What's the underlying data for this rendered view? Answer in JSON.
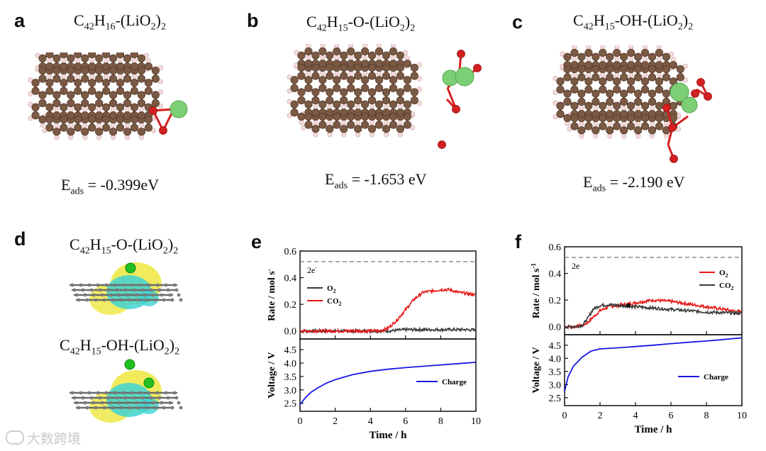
{
  "panels": {
    "a": {
      "label": "a",
      "formula": {
        "pre": "C",
        "s1": "42",
        "mid": "H",
        "s2": "16",
        "post": "-(LiO",
        "s3": "2",
        "end": ")"
      },
      "fsub": "2",
      "energy_sym": "E",
      "energy_sub": "ads",
      "energy_value": " = -0.399eV"
    },
    "b": {
      "label": "b",
      "formula": {
        "pre": "C",
        "s1": "42",
        "mid": "H",
        "s2": "15",
        "post": "-O-(LiO",
        "s3": "2",
        "end": ")"
      },
      "fsub": "2",
      "energy_sym": "E",
      "energy_sub": "ads",
      "energy_value": " = -1.653 eV"
    },
    "c": {
      "label": "c",
      "formula": {
        "pre": "C",
        "s1": "42",
        "mid": "H",
        "s2": "15",
        "post": "-OH-(LiO",
        "s3": "2",
        "end": ")"
      },
      "fsub": "2",
      "energy_sym": "E",
      "energy_sub": "ads",
      "energy_value": " = -2.190 eV"
    },
    "d": {
      "label": "d",
      "top": {
        "pre": "C",
        "s1": "42",
        "mid": "H",
        "s2": "15",
        "post": "-O-(LiO",
        "s3": "2",
        "end": ")",
        "fsub": "2"
      },
      "bottom": {
        "pre": "C",
        "s1": "42",
        "mid": "H",
        "s2": "15",
        "post": "-OH-(LiO",
        "s3": "2",
        "end": ")",
        "fsub": "2"
      }
    },
    "e": {
      "label": "e"
    },
    "f": {
      "label": "f"
    }
  },
  "colors": {
    "carbon": "#7b5a45",
    "hydrogen": "#f3dada",
    "oxygen": "#d42020",
    "lithium": "#7ccf74",
    "o2_line": "#3a3a3a",
    "co2_line": "#e81818",
    "charge_line": "#1818e0",
    "iso_yellow": "#efe94a",
    "iso_cyan": "#3fd4d4"
  },
  "chart_data": [
    {
      "type": "line",
      "panel": "e",
      "ylabel_top": "Rate / mol s",
      "ylabel_top_sup": "-",
      "ylabel_bottom": "Voltage / V",
      "xlabel": "Time / h",
      "xlim": [
        0,
        10
      ],
      "x_ticks": [
        "0",
        "2",
        "4",
        "6",
        "8",
        "10"
      ],
      "rate_ylim": [
        -0.06,
        0.6
      ],
      "rate_ticks": [
        "0.0",
        "0.2",
        "0.4",
        "0.6"
      ],
      "voltage_ylim": [
        2.2,
        4.9
      ],
      "voltage_ticks": [
        "2.5",
        "3.0",
        "3.5",
        "4.0",
        "4.5"
      ],
      "reference_line": {
        "value": 0.52,
        "label": "2e",
        "label_sup": "-"
      },
      "legend": [
        {
          "name": "O",
          "sub": "2"
        },
        {
          "name": "CO",
          "sub": "2"
        }
      ],
      "series": [
        {
          "name": "O2",
          "color": "#3a3a3a",
          "x": [
            0,
            1,
            2,
            3,
            4,
            5,
            5.5,
            6,
            6.5,
            7,
            7.5,
            8,
            8.5,
            9,
            9.5,
            10
          ],
          "y": [
            0,
            0,
            0,
            0,
            0,
            0,
            0.005,
            0.01,
            0.01,
            0.01,
            0.01,
            0.01,
            0.01,
            0.01,
            0.01,
            0.005
          ]
        },
        {
          "name": "CO2",
          "color": "#e81818",
          "x": [
            0,
            1,
            2,
            3,
            4,
            4.5,
            5,
            5.5,
            6,
            6.5,
            7,
            7.5,
            8,
            8.5,
            9,
            9.5,
            10
          ],
          "y": [
            0,
            0,
            0,
            0,
            0,
            0,
            0.02,
            0.08,
            0.16,
            0.24,
            0.29,
            0.3,
            0.31,
            0.31,
            0.29,
            0.28,
            0.27
          ]
        }
      ],
      "voltage": {
        "name": "Charge",
        "color": "#1818e0",
        "x": [
          0,
          0.3,
          0.6,
          1,
          1.5,
          2,
          3,
          4,
          5,
          6,
          7,
          8,
          9,
          10
        ],
        "y": [
          2.45,
          2.7,
          2.9,
          3.07,
          3.25,
          3.38,
          3.57,
          3.69,
          3.77,
          3.83,
          3.88,
          3.93,
          3.98,
          4.03
        ]
      }
    },
    {
      "type": "line",
      "panel": "f",
      "ylabel_top": "Rate / mol s",
      "ylabel_top_sup": "-1",
      "ylabel_bottom": "Voltage / V",
      "xlabel": "Time / h",
      "xlim": [
        0,
        10
      ],
      "x_ticks": [
        "0",
        "2",
        "4",
        "6",
        "8",
        "10"
      ],
      "rate_ylim": [
        -0.06,
        0.6
      ],
      "rate_ticks": [
        "0.0",
        "0.2",
        "0.4",
        "0.6"
      ],
      "voltage_ylim": [
        2.2,
        4.9
      ],
      "voltage_ticks": [
        "2.5",
        "3.0",
        "3.5",
        "4.0",
        "4.5"
      ],
      "reference_line": {
        "value": 0.52,
        "label": "2e",
        "label_sup": ""
      },
      "legend": [
        {
          "name": "O",
          "sub": "2"
        },
        {
          "name": "CO",
          "sub": "2"
        }
      ],
      "series": [
        {
          "name": "O2",
          "color": "#e81818",
          "x": [
            0,
            0.5,
            1,
            1.3,
            1.6,
            2,
            2.5,
            3,
            3.5,
            4,
            5,
            6,
            7,
            8,
            9,
            10
          ],
          "y": [
            0,
            0,
            0.01,
            0.03,
            0.07,
            0.12,
            0.15,
            0.16,
            0.17,
            0.18,
            0.2,
            0.19,
            0.17,
            0.15,
            0.13,
            0.11
          ]
        },
        {
          "name": "CO2",
          "color": "#3a3a3a",
          "x": [
            0,
            0.5,
            1,
            1.3,
            1.6,
            2,
            2.5,
            3,
            3.5,
            4,
            5,
            6,
            7,
            8,
            9,
            10
          ],
          "y": [
            0,
            0,
            0.01,
            0.06,
            0.13,
            0.16,
            0.165,
            0.16,
            0.155,
            0.15,
            0.14,
            0.13,
            0.12,
            0.11,
            0.105,
            0.1
          ]
        }
      ],
      "voltage": {
        "name": "Charge",
        "color": "#1818e0",
        "x": [
          0,
          0.2,
          0.5,
          1,
          1.5,
          2,
          3,
          4,
          5,
          6,
          7,
          8,
          9,
          10
        ],
        "y": [
          2.75,
          3.3,
          3.7,
          4.05,
          4.28,
          4.36,
          4.4,
          4.45,
          4.5,
          4.56,
          4.61,
          4.66,
          4.72,
          4.78
        ]
      }
    }
  ],
  "watermark": {
    "text": "大数跨境"
  }
}
